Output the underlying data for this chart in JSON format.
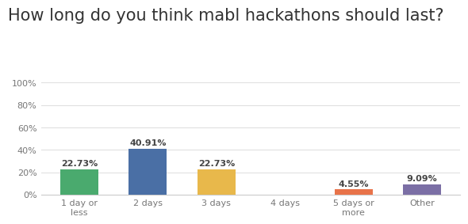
{
  "title": "How long do you think mabl hackathons should last?",
  "categories": [
    "1 day or\nless",
    "2 days",
    "3 days",
    "4 days",
    "5 days or\nmore",
    "Other"
  ],
  "values": [
    22.73,
    40.91,
    22.73,
    0.0,
    4.55,
    9.09
  ],
  "labels": [
    "22.73%",
    "40.91%",
    "22.73%",
    "",
    "4.55%",
    "9.09%"
  ],
  "bar_colors": [
    "#4aaa6e",
    "#4a6fa5",
    "#e8b84b",
    "#cccccc",
    "#e8734a",
    "#7b6fa5"
  ],
  "ylim": [
    0,
    100
  ],
  "yticks": [
    0,
    20,
    40,
    60,
    80,
    100
  ],
  "ytick_labels": [
    "0%",
    "20%",
    "40%",
    "60%",
    "80%",
    "100%"
  ],
  "title_fontsize": 15,
  "label_fontsize": 8,
  "tick_fontsize": 8,
  "background_color": "#ffffff",
  "grid_color": "#e0e0e0"
}
